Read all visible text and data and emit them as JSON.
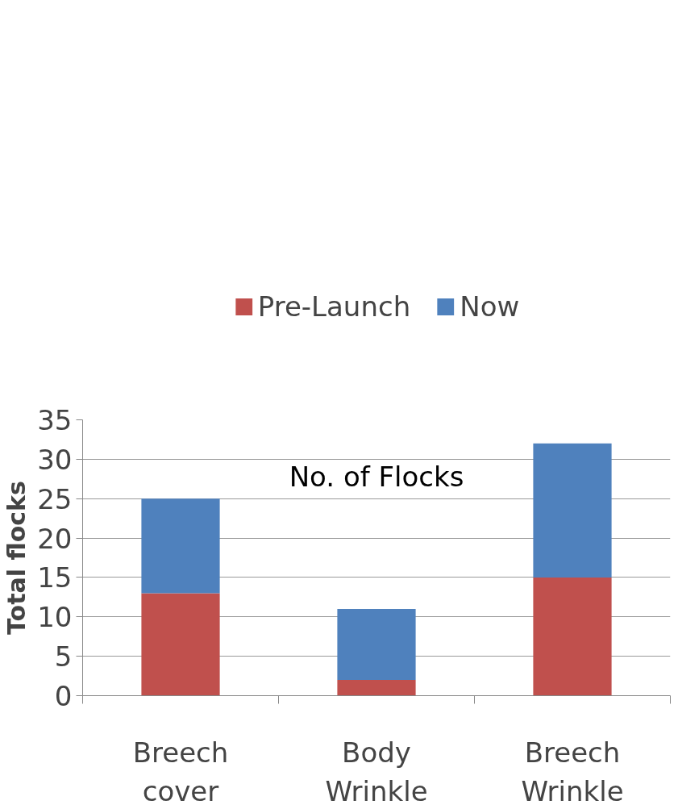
{
  "chart_data": {
    "type": "bar",
    "title": "No. of Flocks",
    "ylabel": "Total flocks",
    "categories": [
      "Breech\ncover",
      "Body\nWrinkle",
      "Breech\nWrinkle"
    ],
    "stacked": true,
    "series": [
      {
        "name": "Pre-Launch",
        "color": "#c0504d",
        "values": [
          13,
          2,
          15
        ]
      },
      {
        "name": "Now",
        "color": "#4f81bd",
        "values": [
          12,
          9,
          17
        ]
      }
    ],
    "ylim": [
      0,
      35
    ],
    "yticks": [
      0,
      5,
      10,
      15,
      20,
      25,
      30,
      35
    ],
    "grid": "y",
    "legend": "top"
  }
}
